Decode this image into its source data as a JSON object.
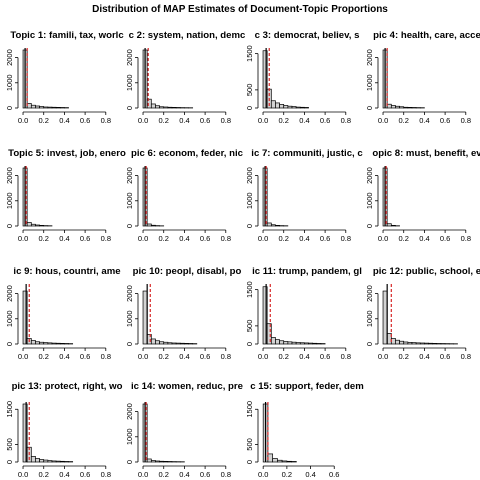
{
  "title": "Distribution of MAP Estimates of Document-Topic Proportions",
  "colors": {
    "bar_fill": "#d3d3d3",
    "bar_stroke": "#000000",
    "line_black": "#000000",
    "line_red": "#d62728"
  },
  "chart_data": [
    {
      "type": "bar",
      "title": "Topic 1: famili, tax, worlc",
      "xticks": [
        "0.0",
        "0.2",
        "0.4",
        "0.6",
        "0.8"
      ],
      "yticks": [
        "0",
        "1000",
        "2000"
      ],
      "ylim": [
        0,
        2300
      ],
      "xlim": [
        -0.01,
        0.86
      ],
      "bins": [
        [
          0,
          0.04,
          2300
        ],
        [
          0.04,
          0.08,
          180
        ],
        [
          0.08,
          0.12,
          110
        ],
        [
          0.12,
          0.16,
          80
        ],
        [
          0.16,
          0.2,
          60
        ],
        [
          0.2,
          0.24,
          40
        ],
        [
          0.24,
          0.28,
          35
        ],
        [
          0.28,
          0.32,
          30
        ],
        [
          0.32,
          0.36,
          25
        ],
        [
          0.36,
          0.4,
          20
        ],
        [
          0.4,
          0.44,
          15
        ]
      ],
      "mean": 0.04,
      "median": 0.02
    },
    {
      "type": "bar",
      "title": "c 2: system, nation, demc",
      "xticks": [
        "0.0",
        "0.2",
        "0.4",
        "0.6",
        "0.8"
      ],
      "yticks": [
        "0",
        "1000",
        "2000"
      ],
      "ylim": [
        0,
        2300
      ],
      "xlim": [
        -0.01,
        0.86
      ],
      "bins": [
        [
          0,
          0.04,
          2300
        ],
        [
          0.04,
          0.08,
          350
        ],
        [
          0.08,
          0.12,
          160
        ],
        [
          0.12,
          0.16,
          90
        ],
        [
          0.16,
          0.2,
          50
        ],
        [
          0.2,
          0.24,
          40
        ],
        [
          0.24,
          0.28,
          30
        ],
        [
          0.28,
          0.32,
          25
        ],
        [
          0.32,
          0.36,
          20
        ],
        [
          0.36,
          0.4,
          15
        ],
        [
          0.4,
          0.44,
          12
        ],
        [
          0.44,
          0.48,
          10
        ]
      ],
      "mean": 0.05,
      "median": 0.02
    },
    {
      "type": "bar",
      "title": "c 3: democrat, believ, s",
      "xticks": [
        "0.0",
        "0.2",
        "0.4",
        "0.6",
        "0.8"
      ],
      "yticks": [
        "0",
        "500",
        "1500"
      ],
      "ylim": [
        0,
        1600
      ],
      "xlim": [
        -0.01,
        0.86
      ],
      "bins": [
        [
          0,
          0.04,
          1580
        ],
        [
          0.04,
          0.08,
          520
        ],
        [
          0.08,
          0.12,
          200
        ],
        [
          0.12,
          0.16,
          140
        ],
        [
          0.16,
          0.2,
          100
        ],
        [
          0.2,
          0.24,
          70
        ],
        [
          0.24,
          0.28,
          50
        ],
        [
          0.28,
          0.32,
          40
        ],
        [
          0.32,
          0.36,
          25
        ],
        [
          0.36,
          0.4,
          20
        ],
        [
          0.4,
          0.44,
          15
        ]
      ],
      "mean": 0.06,
      "median": 0.03
    },
    {
      "type": "bar",
      "title": "pic 4: health, care, acce",
      "xticks": [
        "0.0",
        "0.2",
        "0.4",
        "0.6",
        "0.8"
      ],
      "yticks": [
        "0",
        "1000",
        "2000"
      ],
      "ylim": [
        0,
        2300
      ],
      "xlim": [
        -0.01,
        0.86
      ],
      "bins": [
        [
          0,
          0.04,
          2300
        ],
        [
          0.04,
          0.08,
          150
        ],
        [
          0.08,
          0.12,
          100
        ],
        [
          0.12,
          0.16,
          70
        ],
        [
          0.16,
          0.2,
          50
        ],
        [
          0.2,
          0.24,
          30
        ],
        [
          0.24,
          0.28,
          25
        ],
        [
          0.28,
          0.32,
          20
        ],
        [
          0.32,
          0.36,
          15
        ],
        [
          0.36,
          0.4,
          12
        ]
      ],
      "mean": 0.04,
      "median": 0.02
    },
    {
      "type": "bar",
      "title": "Topic 5: invest, job, enero",
      "xticks": [
        "0.0",
        "0.2",
        "0.4",
        "0.6",
        "0.8"
      ],
      "yticks": [
        "0",
        "1000",
        "2000"
      ],
      "ylim": [
        0,
        2300
      ],
      "xlim": [
        -0.01,
        0.86
      ],
      "bins": [
        [
          0,
          0.04,
          2300
        ],
        [
          0.04,
          0.08,
          140
        ],
        [
          0.08,
          0.12,
          70
        ],
        [
          0.12,
          0.16,
          40
        ],
        [
          0.16,
          0.2,
          25
        ],
        [
          0.2,
          0.24,
          15
        ],
        [
          0.24,
          0.28,
          10
        ]
      ],
      "mean": 0.03,
      "median": 0.02
    },
    {
      "type": "bar",
      "title": "pic 6: econom, feder, nic",
      "xticks": [
        "0.0",
        "0.2",
        "0.4",
        "0.6",
        "0.8"
      ],
      "yticks": [
        "0",
        "1000",
        "2000"
      ],
      "ylim": [
        0,
        2300
      ],
      "xlim": [
        -0.01,
        0.86
      ],
      "bins": [
        [
          0,
          0.04,
          2300
        ],
        [
          0.04,
          0.08,
          80
        ],
        [
          0.08,
          0.12,
          30
        ],
        [
          0.12,
          0.16,
          15
        ],
        [
          0.16,
          0.2,
          8
        ]
      ],
      "mean": 0.03,
      "median": 0.02
    },
    {
      "type": "bar",
      "title": "ic 7: communiti, justic, c",
      "xticks": [
        "0.0",
        "0.2",
        "0.4",
        "0.6",
        "0.8"
      ],
      "yticks": [
        "0",
        "1000",
        "2000"
      ],
      "ylim": [
        0,
        2300
      ],
      "xlim": [
        -0.01,
        0.86
      ],
      "bins": [
        [
          0,
          0.04,
          2300
        ],
        [
          0.04,
          0.08,
          120
        ],
        [
          0.08,
          0.12,
          50
        ],
        [
          0.12,
          0.16,
          25
        ],
        [
          0.16,
          0.2,
          15
        ],
        [
          0.2,
          0.24,
          10
        ]
      ],
      "mean": 0.03,
      "median": 0.02
    },
    {
      "type": "bar",
      "title": "opic 8: must, benefit, ev",
      "xticks": [
        "0.0",
        "0.2",
        "0.4",
        "0.6",
        "0.8"
      ],
      "yticks": [
        "0",
        "1000",
        "2000"
      ],
      "ylim": [
        0,
        2300
      ],
      "xlim": [
        -0.01,
        0.86
      ],
      "bins": [
        [
          0,
          0.04,
          2300
        ],
        [
          0.04,
          0.08,
          90
        ],
        [
          0.08,
          0.12,
          25
        ],
        [
          0.12,
          0.16,
          10
        ]
      ],
      "mean": 0.03,
      "median": 0.02
    },
    {
      "type": "bar",
      "title": "ic 9: hous, countri, ame",
      "xticks": [
        "0.0",
        "0.2",
        "0.4",
        "0.6",
        "0.8"
      ],
      "yticks": [
        "0",
        "1000",
        "2000"
      ],
      "ylim": [
        0,
        2300
      ],
      "xlim": [
        -0.01,
        0.86
      ],
      "bins": [
        [
          0,
          0.04,
          2100
        ],
        [
          0.04,
          0.08,
          220
        ],
        [
          0.08,
          0.12,
          140
        ],
        [
          0.12,
          0.16,
          90
        ],
        [
          0.16,
          0.2,
          70
        ],
        [
          0.2,
          0.24,
          55
        ],
        [
          0.24,
          0.28,
          45
        ],
        [
          0.28,
          0.32,
          35
        ],
        [
          0.32,
          0.36,
          30
        ],
        [
          0.36,
          0.4,
          25
        ],
        [
          0.4,
          0.44,
          20
        ],
        [
          0.44,
          0.48,
          15
        ]
      ],
      "mean": 0.06,
      "median": 0.03
    },
    {
      "type": "bar",
      "title": "pic 10: peopl, disabl, po",
      "xticks": [
        "0.0",
        "0.2",
        "0.4",
        "0.6",
        "0.8"
      ],
      "yticks": [
        "0",
        "1000",
        "2000"
      ],
      "ylim": [
        0,
        2300
      ],
      "xlim": [
        -0.01,
        0.86
      ],
      "bins": [
        [
          0,
          0.04,
          2100
        ],
        [
          0.04,
          0.08,
          380
        ],
        [
          0.08,
          0.12,
          200
        ],
        [
          0.12,
          0.16,
          130
        ],
        [
          0.16,
          0.2,
          90
        ],
        [
          0.2,
          0.24,
          70
        ],
        [
          0.24,
          0.28,
          50
        ],
        [
          0.28,
          0.32,
          40
        ],
        [
          0.32,
          0.36,
          35
        ],
        [
          0.36,
          0.4,
          30
        ],
        [
          0.4,
          0.44,
          25
        ],
        [
          0.44,
          0.48,
          20
        ],
        [
          0.48,
          0.52,
          15
        ]
      ],
      "mean": 0.07,
      "median": 0.04
    },
    {
      "type": "bar",
      "title": "ic 11: trump, pandem, gl",
      "xticks": [
        "0.0",
        "0.2",
        "0.4",
        "0.6",
        "0.8"
      ],
      "yticks": [
        "0",
        "500",
        "1500"
      ],
      "ylim": [
        0,
        1600
      ],
      "xlim": [
        -0.01,
        0.86
      ],
      "bins": [
        [
          0,
          0.04,
          1580
        ],
        [
          0.04,
          0.08,
          560
        ],
        [
          0.08,
          0.12,
          180
        ],
        [
          0.12,
          0.16,
          120
        ],
        [
          0.16,
          0.2,
          90
        ],
        [
          0.2,
          0.24,
          70
        ],
        [
          0.24,
          0.28,
          60
        ],
        [
          0.28,
          0.32,
          50
        ],
        [
          0.32,
          0.36,
          40
        ],
        [
          0.36,
          0.4,
          35
        ],
        [
          0.4,
          0.44,
          30
        ],
        [
          0.44,
          0.48,
          25
        ],
        [
          0.48,
          0.52,
          20
        ],
        [
          0.52,
          0.56,
          15
        ],
        [
          0.56,
          0.6,
          12
        ]
      ],
      "mean": 0.07,
      "median": 0.03
    },
    {
      "type": "bar",
      "title": "pic 12: public, school, e",
      "xticks": [
        "0.0",
        "0.2",
        "0.4",
        "0.6",
        "0.8"
      ],
      "yticks": [
        "0",
        "1000",
        "2000"
      ],
      "ylim": [
        0,
        2300
      ],
      "xlim": [
        -0.01,
        0.86
      ],
      "bins": [
        [
          0,
          0.04,
          2100
        ],
        [
          0.04,
          0.08,
          420
        ],
        [
          0.08,
          0.12,
          220
        ],
        [
          0.12,
          0.16,
          150
        ],
        [
          0.16,
          0.2,
          110
        ],
        [
          0.2,
          0.24,
          80
        ],
        [
          0.24,
          0.28,
          65
        ],
        [
          0.28,
          0.32,
          55
        ],
        [
          0.32,
          0.36,
          45
        ],
        [
          0.36,
          0.4,
          40
        ],
        [
          0.4,
          0.44,
          35
        ],
        [
          0.44,
          0.48,
          30
        ],
        [
          0.48,
          0.52,
          25
        ],
        [
          0.52,
          0.56,
          20
        ],
        [
          0.56,
          0.6,
          18
        ],
        [
          0.6,
          0.64,
          15
        ],
        [
          0.64,
          0.68,
          12
        ],
        [
          0.68,
          0.72,
          10
        ]
      ],
      "mean": 0.08,
      "median": 0.04
    },
    {
      "type": "bar",
      "title": "pic 13: protect, right, wo",
      "xticks": [
        "0.0",
        "0.2",
        "0.4",
        "0.6",
        "0.8"
      ],
      "yticks": [
        "0",
        "500",
        "1500"
      ],
      "ylim": [
        0,
        1650
      ],
      "xlim": [
        -0.01,
        0.86
      ],
      "bins": [
        [
          0,
          0.04,
          1650
        ],
        [
          0.04,
          0.08,
          420
        ],
        [
          0.08,
          0.12,
          160
        ],
        [
          0.12,
          0.16,
          100
        ],
        [
          0.16,
          0.2,
          70
        ],
        [
          0.2,
          0.24,
          55
        ],
        [
          0.24,
          0.28,
          40
        ],
        [
          0.28,
          0.32,
          30
        ],
        [
          0.32,
          0.36,
          25
        ],
        [
          0.36,
          0.4,
          20
        ],
        [
          0.4,
          0.44,
          15
        ],
        [
          0.44,
          0.48,
          12
        ]
      ],
      "mean": 0.06,
      "median": 0.03
    },
    {
      "type": "bar",
      "title": "ic 14: women, reduc, pre",
      "xticks": [
        "0.0",
        "0.2",
        "0.4",
        "0.6",
        "0.8"
      ],
      "yticks": [
        "0",
        "1000",
        "2000"
      ],
      "ylim": [
        0,
        2300
      ],
      "xlim": [
        -0.01,
        0.86
      ],
      "bins": [
        [
          0,
          0.04,
          2300
        ],
        [
          0.04,
          0.08,
          120
        ],
        [
          0.08,
          0.12,
          60
        ],
        [
          0.12,
          0.16,
          40
        ],
        [
          0.16,
          0.2,
          30
        ],
        [
          0.2,
          0.24,
          25
        ],
        [
          0.24,
          0.28,
          20
        ],
        [
          0.28,
          0.32,
          15
        ],
        [
          0.32,
          0.36,
          12
        ],
        [
          0.36,
          0.4,
          10
        ]
      ],
      "mean": 0.03,
      "median": 0.02
    },
    {
      "type": "bar",
      "title": "c 15: support, feder, dem",
      "xticks": [
        "0.0",
        "0.2",
        "0.4",
        "0.6"
      ],
      "yticks": [
        "0",
        "500",
        "1500"
      ],
      "ylim": [
        0,
        1650
      ],
      "xlim": [
        -0.01,
        0.75
      ],
      "bins": [
        [
          0,
          0.04,
          1650
        ],
        [
          0.04,
          0.08,
          230
        ],
        [
          0.08,
          0.12,
          100
        ],
        [
          0.12,
          0.16,
          50
        ],
        [
          0.16,
          0.2,
          30
        ],
        [
          0.2,
          0.24,
          20
        ],
        [
          0.24,
          0.28,
          15
        ]
      ],
      "mean": 0.04,
      "median": 0.02
    }
  ]
}
